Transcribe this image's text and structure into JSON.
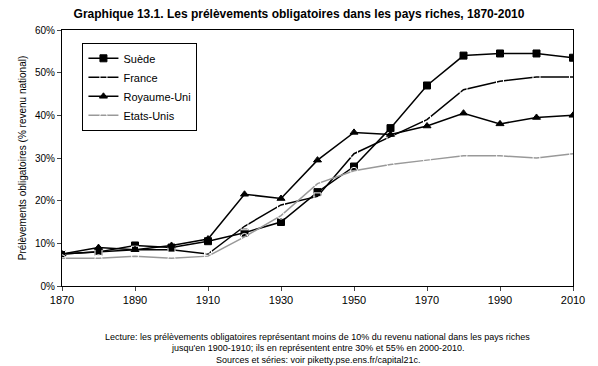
{
  "chart_data": {
    "type": "line",
    "title": "Graphique 13.1. Les prélèvements obligatoires dans les pays riches, 1870-2010",
    "y_label": "Prélèvements obligatoires (% revenu national)",
    "annotations": [
      "Lecture: les prélèvements obligatoires représentant moins de 10% du revenu national dans les pays riches",
      "jusqu'en 1900-1910; ils en représentent entre 30% et 55% en 2000-2010.",
      "Sources et séries: voir piketty.pse.ens.fr/capital21c."
    ],
    "x": [
      1870,
      1880,
      1890,
      1900,
      1910,
      1920,
      1930,
      1940,
      1950,
      1960,
      1970,
      1980,
      1990,
      2000,
      2010
    ],
    "series": [
      {
        "name": "Suède",
        "color": "#000000",
        "marker": "square",
        "line_style": "solid",
        "values": [
          7.5,
          8,
          9.5,
          9,
          10.5,
          12.5,
          15,
          22,
          28,
          37,
          47,
          54,
          54.5,
          54.5,
          53.5
        ]
      },
      {
        "name": "France",
        "color": "#000000",
        "marker": "square-open",
        "line_style": "solid",
        "values": [
          7.5,
          8,
          8.5,
          8.5,
          7.5,
          14,
          19,
          21,
          31,
          35,
          39,
          46,
          48,
          49,
          49
        ]
      },
      {
        "name": "Royaume-Uni",
        "color": "#000000",
        "marker": "triangle-up",
        "line_style": "solid",
        "values": [
          7.5,
          9,
          8.5,
          9.5,
          11,
          21.5,
          20.5,
          29.5,
          36,
          35.5,
          37.5,
          40.5,
          38,
          39.5,
          40
        ]
      },
      {
        "name": "Etats-Unis",
        "color": "#999999",
        "marker": "circle-open",
        "line_style": "solid",
        "values": [
          6.5,
          6.5,
          7,
          6.5,
          7,
          11.5,
          16.5,
          24,
          27,
          28.5,
          29.5,
          30.5,
          30.5,
          30,
          31
        ]
      }
    ],
    "xlim": [
      1870,
      2010
    ],
    "xticks": [
      1870,
      1890,
      1910,
      1930,
      1950,
      1970,
      1990,
      2010
    ],
    "ylim": [
      0,
      60
    ],
    "yticks": [
      {
        "value": 0,
        "label": "0%"
      },
      {
        "value": 10,
        "label": "10%"
      },
      {
        "value": 20,
        "label": "20%"
      },
      {
        "value": 30,
        "label": "30%"
      },
      {
        "value": 40,
        "label": "40%"
      },
      {
        "value": 50,
        "label": "50%"
      },
      {
        "value": 60,
        "label": "60%"
      }
    ],
    "grid": false,
    "legend": "upper left"
  }
}
